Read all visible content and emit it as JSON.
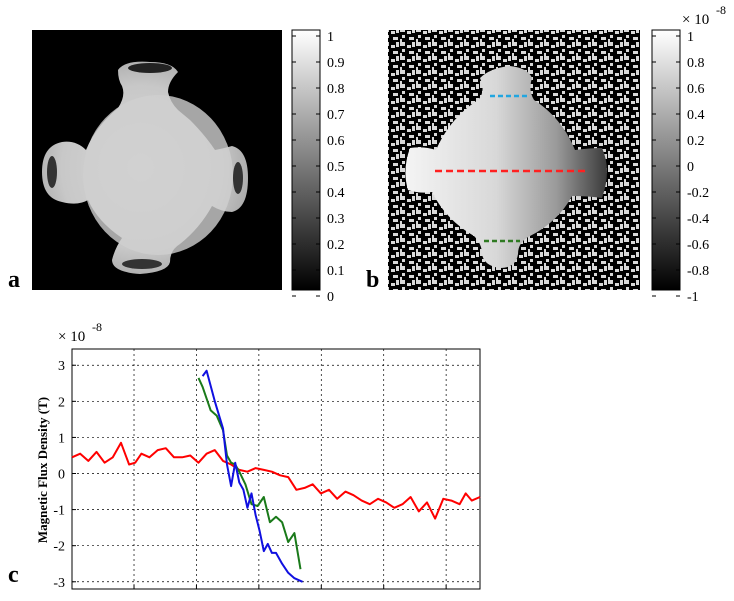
{
  "panels": {
    "a": {
      "letter": "a"
    },
    "b": {
      "letter": "b"
    },
    "c": {
      "letter": "c"
    }
  },
  "colorbar_a": {
    "ticks": [
      "1",
      "0.9",
      "0.8",
      "0.7",
      "0.6",
      "0.5",
      "0.4",
      "0.3",
      "0.2",
      "0.1",
      "0"
    ]
  },
  "colorbar_b": {
    "multiplier": "× 10",
    "exponent": "-8",
    "ticks": [
      "1",
      "0.8",
      "0.6",
      "0.4",
      "0.2",
      "0",
      "-0.2",
      "-0.4",
      "-0.6",
      "-0.8",
      "-1"
    ]
  },
  "profile_colors": {
    "top": "#22a6e0",
    "middle": "#ff2020",
    "bottom": "#2f7a22"
  },
  "chart_data": {
    "type": "line",
    "multiplier": "× 10",
    "exponent": "-8",
    "ylabel": "Magnetic Flux Density (T)",
    "xlabel": "",
    "ylim": [
      -3.2,
      3.45
    ],
    "xlim": [
      0,
      100
    ],
    "yticks": [
      "3",
      "2",
      "1",
      "0",
      "-1",
      "-2",
      "-3"
    ],
    "ytick_values": [
      3,
      2,
      1,
      0,
      -1,
      -2,
      -3
    ],
    "grid": true,
    "series": [
      {
        "color": "#ff0000",
        "x": [
          0,
          2,
          4,
          6,
          8,
          10,
          12,
          14,
          15.5,
          17,
          19,
          21,
          23,
          25,
          27,
          29,
          31,
          33,
          35,
          37,
          39,
          41,
          43,
          45,
          47,
          49,
          51,
          53,
          55,
          57,
          59,
          61,
          63,
          65,
          67,
          69,
          71,
          73,
          75,
          77,
          79,
          81,
          83,
          85,
          87,
          89,
          91,
          93,
          95,
          96.5,
          98,
          100
        ],
        "y": [
          0.45,
          0.55,
          0.35,
          0.6,
          0.3,
          0.45,
          0.85,
          0.25,
          0.3,
          0.55,
          0.45,
          0.65,
          0.7,
          0.45,
          0.45,
          0.5,
          0.3,
          0.55,
          0.65,
          0.35,
          0.25,
          0.1,
          0.05,
          0.15,
          0.1,
          0.05,
          -0.05,
          -0.1,
          -0.45,
          -0.4,
          -0.3,
          -0.55,
          -0.45,
          -0.7,
          -0.5,
          -0.6,
          -0.75,
          -0.85,
          -0.7,
          -0.8,
          -0.95,
          -0.85,
          -0.65,
          -1.05,
          -0.8,
          -1.25,
          -0.7,
          -0.75,
          -0.85,
          -0.55,
          -0.75,
          -0.65
        ]
      },
      {
        "color": "#1a7a1a",
        "x": [
          31,
          32,
          34,
          35.5,
          37,
          38,
          39,
          40,
          41,
          42.5,
          44,
          45.5,
          47,
          48.5,
          50,
          51.5,
          53,
          54.5,
          56
        ],
        "y": [
          2.65,
          2.4,
          1.75,
          1.6,
          1.2,
          0.5,
          0.3,
          0.25,
          0.05,
          -0.3,
          -0.85,
          -0.9,
          -0.65,
          -1.35,
          -1.2,
          -1.35,
          -1.9,
          -1.65,
          -2.65
        ]
      },
      {
        "color": "#1010e0",
        "x": [
          32,
          33,
          35,
          37,
          38,
          39,
          40,
          41,
          42,
          43,
          44,
          45,
          46,
          47,
          48,
          49,
          50,
          51.5,
          53,
          54.5,
          56.5
        ],
        "y": [
          2.7,
          2.85,
          2.0,
          1.25,
          0.25,
          -0.35,
          0.3,
          -0.25,
          -0.45,
          -0.95,
          -0.55,
          -1.15,
          -1.6,
          -2.15,
          -1.95,
          -2.2,
          -2.2,
          -2.5,
          -2.75,
          -2.9,
          -3.0
        ]
      }
    ]
  }
}
